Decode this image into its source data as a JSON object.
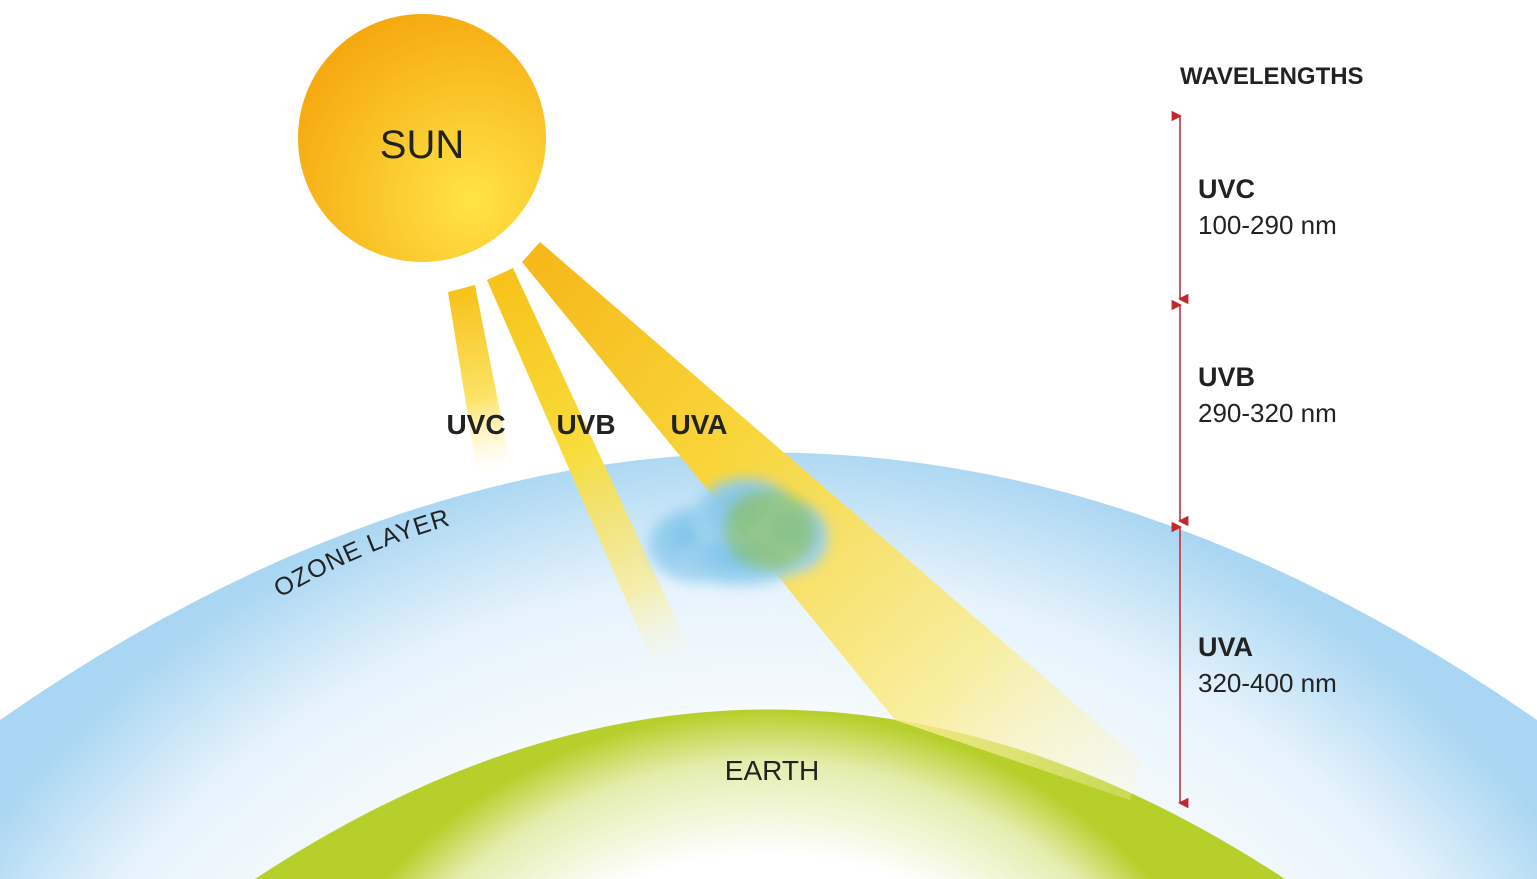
{
  "sun": {
    "label": "SUN"
  },
  "rays": [
    {
      "id": "uvc",
      "label": "UVC"
    },
    {
      "id": "uvb",
      "label": "UVB"
    },
    {
      "id": "uva",
      "label": "UVA"
    }
  ],
  "ozone": {
    "label": "OZONE LAYER"
  },
  "earth": {
    "label": "EARTH"
  },
  "wavelengths": {
    "title": "WAVELENGTHS",
    "bands": [
      {
        "name": "UVC",
        "range": "100-290 nm"
      },
      {
        "name": "UVB",
        "range": "290-320 nm"
      },
      {
        "name": "UVA",
        "range": "320-400 nm"
      }
    ]
  },
  "colors": {
    "sun": "#f5b41a",
    "ray": "#f7d11e",
    "ozone": "#a9d6f2",
    "earth": "#b7cf2a",
    "cloud": "#7cc4ea",
    "scale_line": "#c1272d"
  }
}
